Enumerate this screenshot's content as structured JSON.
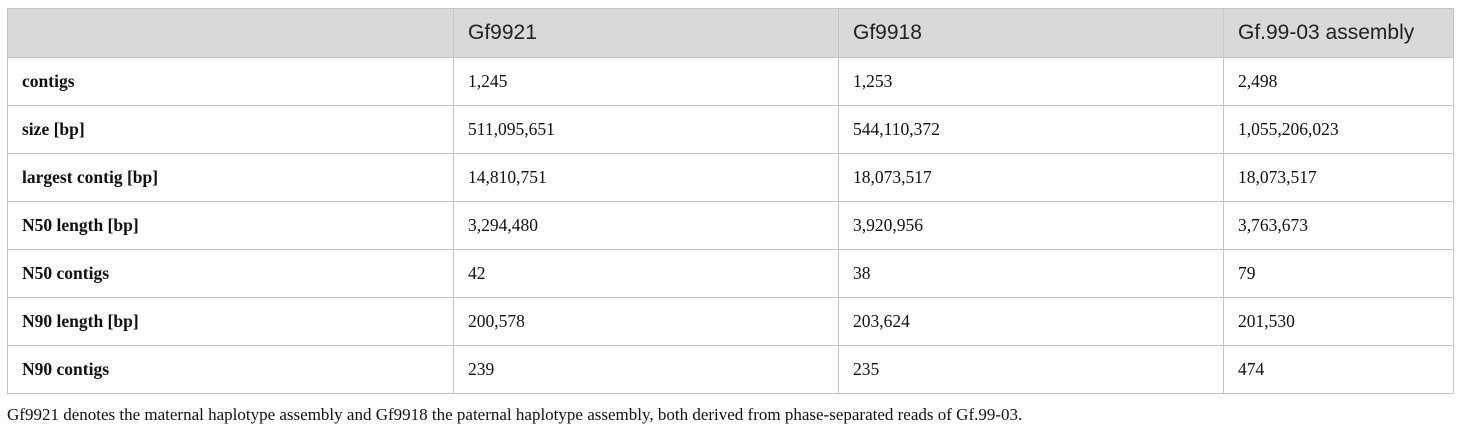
{
  "table": {
    "headers": [
      "",
      "Gf9921",
      "Gf9918",
      "Gf.99-03 assembly"
    ],
    "rows": [
      {
        "label": "contigs",
        "values": [
          "1,245",
          "1,253",
          "2,498"
        ]
      },
      {
        "label": "size [bp]",
        "values": [
          "511,095,651",
          "544,110,372",
          "1,055,206,023"
        ]
      },
      {
        "label": "largest contig [bp]",
        "values": [
          "14,810,751",
          "18,073,517",
          "18,073,517"
        ]
      },
      {
        "label": "N50 length [bp]",
        "values": [
          "3,294,480",
          "3,920,956",
          "3,763,673"
        ]
      },
      {
        "label": "N50 contigs",
        "values": [
          "42",
          "38",
          "79"
        ]
      },
      {
        "label": "N90 length [bp]",
        "values": [
          "200,578",
          "203,624",
          "201,530"
        ]
      },
      {
        "label": "N90 contigs",
        "values": [
          "239",
          "235",
          "474"
        ]
      }
    ]
  },
  "footnote": "Gf9921 denotes the maternal haplotype assembly and Gf9918 the paternal haplotype assembly, both derived from phase-separated reads of Gf.99-03."
}
